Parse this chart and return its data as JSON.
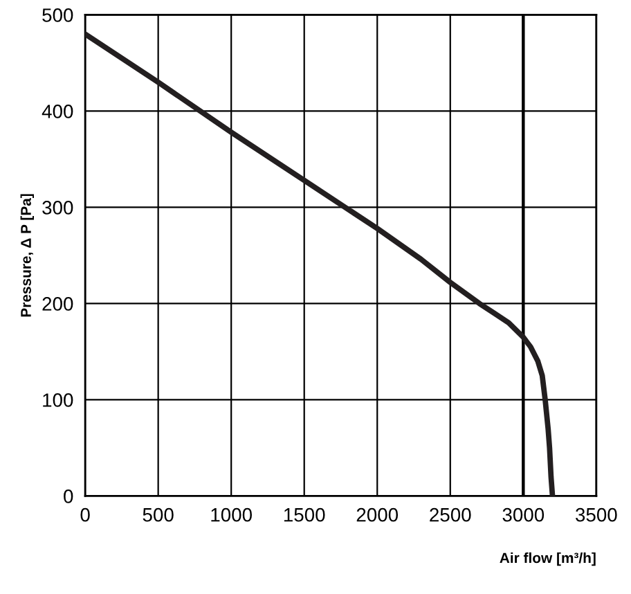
{
  "chart_data": {
    "type": "line",
    "xlabel": "Air flow [m³/h]",
    "ylabel": "Pressure, Δ P [Pa]",
    "x": [
      0,
      500,
      1000,
      1500,
      2000,
      2300,
      2500,
      2700,
      2800,
      2900,
      3000,
      3050,
      3100,
      3130,
      3150,
      3170,
      3180,
      3190,
      3200
    ],
    "series": [
      {
        "color": "#231f20",
        "values": [
          480,
          430,
          378,
          328,
          278,
          246,
          222,
          200,
          190,
          180,
          165,
          155,
          140,
          125,
          100,
          70,
          50,
          20,
          0
        ]
      }
    ],
    "xlim": [
      0,
      3500
    ],
    "ylim": [
      0,
      500
    ],
    "xticks": [
      0,
      500,
      1000,
      1500,
      2000,
      2500,
      3000,
      3500
    ],
    "yticks": [
      0,
      100,
      200,
      300,
      400,
      500
    ],
    "grid": true,
    "line_style": "solid",
    "marker": "none",
    "ref_lines": [
      {
        "axis": "x",
        "value": 3000,
        "color": "#000000",
        "line_style": "solid"
      }
    ]
  }
}
